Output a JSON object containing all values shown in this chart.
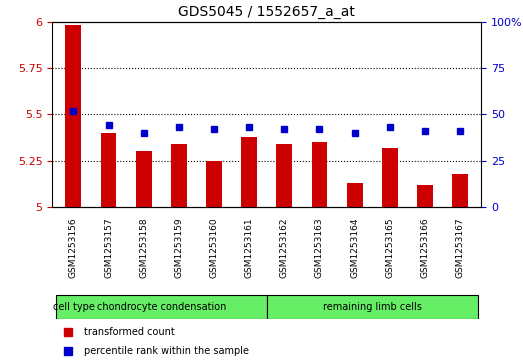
{
  "title": "GDS5045 / 1552657_a_at",
  "samples": [
    "GSM1253156",
    "GSM1253157",
    "GSM1253158",
    "GSM1253159",
    "GSM1253160",
    "GSM1253161",
    "GSM1253162",
    "GSM1253163",
    "GSM1253164",
    "GSM1253165",
    "GSM1253166",
    "GSM1253167"
  ],
  "red_values": [
    5.98,
    5.4,
    5.3,
    5.34,
    5.25,
    5.38,
    5.34,
    5.35,
    5.13,
    5.32,
    5.12,
    5.18
  ],
  "blue_values": [
    5.52,
    5.44,
    5.4,
    5.43,
    5.42,
    5.43,
    5.42,
    5.42,
    5.4,
    5.43,
    5.41,
    5.41
  ],
  "ylim_left": [
    5.0,
    6.0
  ],
  "ylim_right": [
    0,
    100
  ],
  "yticks_left": [
    5.0,
    5.25,
    5.5,
    5.75,
    6.0
  ],
  "yticks_right": [
    0,
    25,
    50,
    75,
    100
  ],
  "ytick_labels_left": [
    "5",
    "5.25",
    "5.5",
    "5.75",
    "6"
  ],
  "ytick_labels_right": [
    "0",
    "25",
    "50",
    "75",
    "100%"
  ],
  "group1_label": "chondrocyte condensation",
  "group2_label": "remaining limb cells",
  "group1_count": 6,
  "group2_count": 6,
  "cell_type_label": "cell type",
  "legend_red": "transformed count",
  "legend_blue": "percentile rank within the sample",
  "bar_color": "#cc0000",
  "marker_color": "#0000cc",
  "group_color": "#66ee66",
  "sample_bg_color": "#cccccc",
  "plot_bg": "#ffffff",
  "bar_width": 0.45,
  "title_fontsize": 10,
  "tick_fontsize": 8,
  "label_fontsize": 7,
  "sample_fontsize": 6.5
}
